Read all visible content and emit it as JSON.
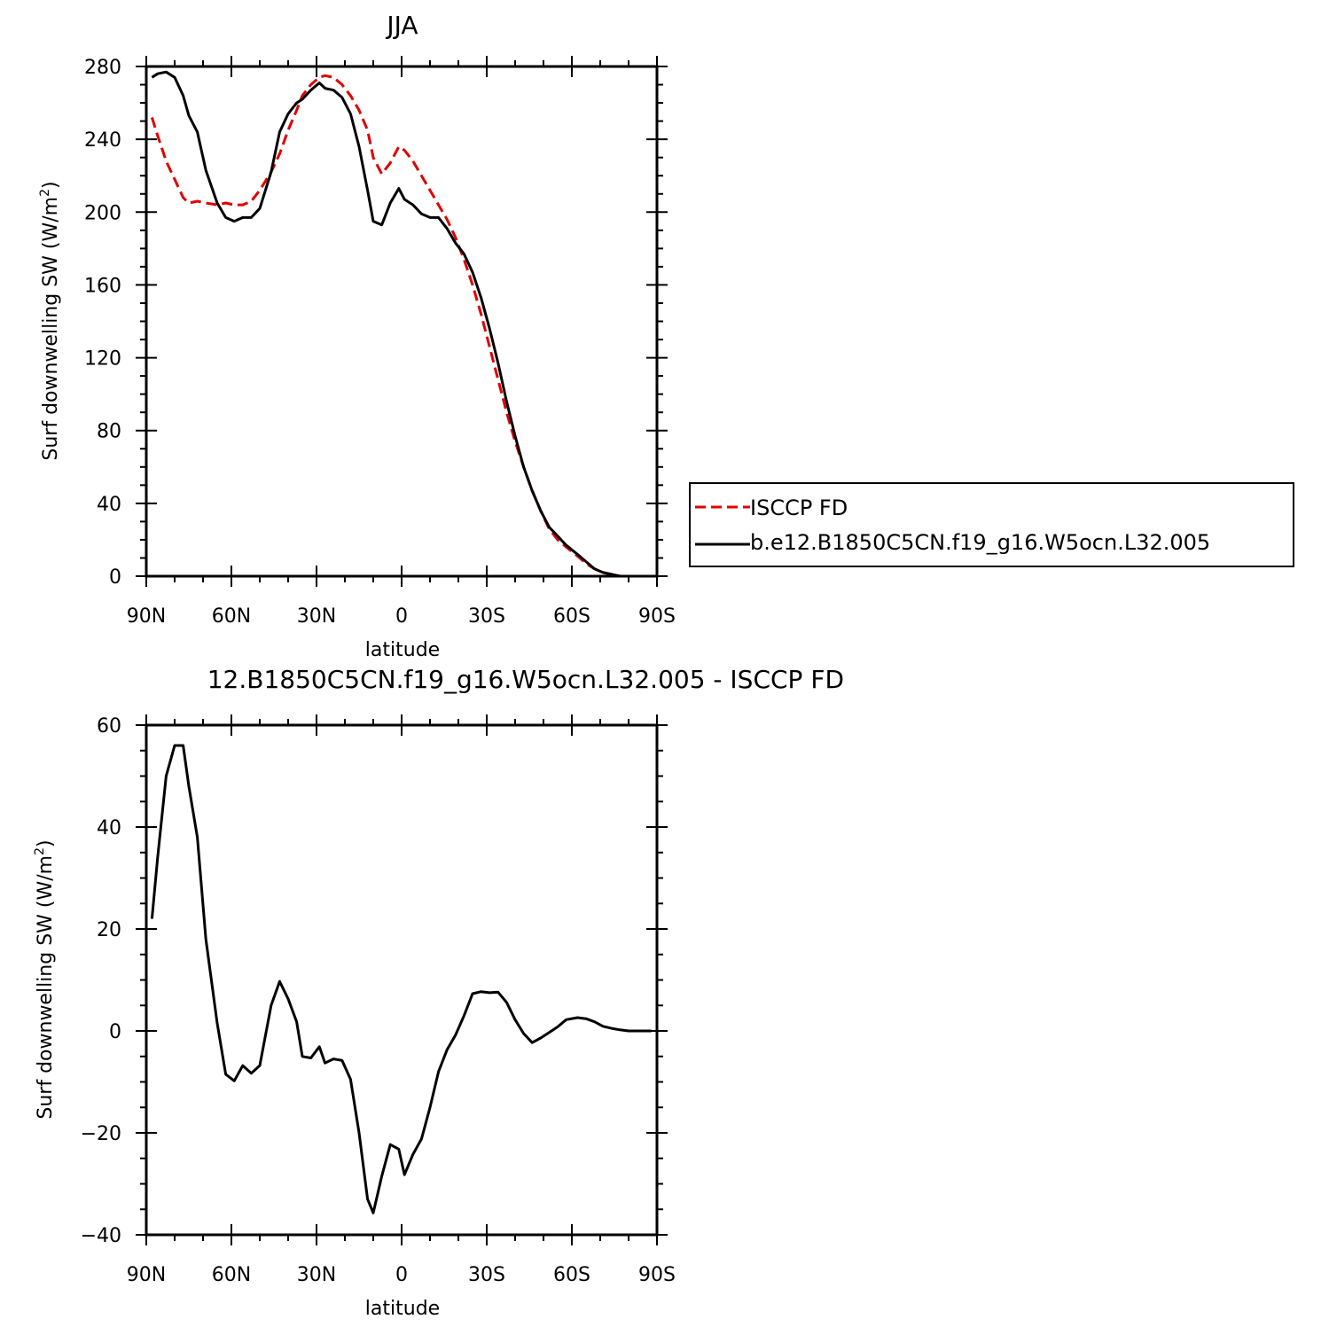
{
  "chart_data": [
    {
      "type": "line",
      "title": "JJA",
      "xlabel": "latitude",
      "ylabel_main": "Surf  downwelling SW  (W/m",
      "ylabel_sup": "2",
      "ylabel_close": ")",
      "xlim": [
        90,
        -90
      ],
      "ylim": [
        0,
        280
      ],
      "x_ticks": [
        90,
        60,
        30,
        0,
        -30,
        -60,
        -90
      ],
      "x_tick_labels": [
        "90N",
        "60N",
        "30N",
        "0",
        "30S",
        "60S",
        "90S"
      ],
      "y_ticks": [
        0,
        40,
        80,
        120,
        160,
        200,
        240,
        280
      ],
      "y_tick_labels": [
        "0",
        "40",
        "80",
        "120",
        "160",
        "200",
        "240",
        "280"
      ],
      "legend_position": "right",
      "series": [
        {
          "name": "ISCCP FD",
          "color": "#e00000",
          "dash": true,
          "x": [
            88,
            86,
            83,
            80,
            77,
            75,
            72,
            69,
            65,
            62,
            59,
            56,
            53,
            50,
            46,
            43,
            40,
            37,
            35,
            32,
            29,
            27,
            24,
            21,
            18,
            15,
            12,
            10,
            7,
            4,
            1,
            -1,
            -4,
            -7,
            -10,
            -13,
            -16,
            -19,
            -22,
            -25,
            -28,
            -31,
            -34,
            -37,
            -40,
            -43,
            -46,
            -49,
            -52,
            -55,
            -58,
            -62,
            -65,
            -68,
            -71,
            -74,
            -77,
            -80,
            -83,
            -86,
            -88
          ],
          "y": [
            252,
            242,
            228,
            218,
            208,
            205,
            206,
            205,
            204,
            205,
            204,
            204,
            206,
            212,
            222,
            232,
            245,
            256,
            264,
            270,
            274,
            275,
            274,
            270,
            264,
            256,
            245,
            230,
            221,
            227,
            236,
            234,
            228,
            220,
            212,
            204,
            196,
            186,
            174,
            160,
            144,
            126,
            108,
            90,
            74,
            60,
            47,
            36,
            26,
            20,
            16,
            11,
            7,
            4,
            2,
            1,
            0,
            0,
            0,
            0,
            0
          ]
        },
        {
          "name": "b.e12.B1850C5CN.f19_g16.W5ocn.L32.005",
          "color": "#000000",
          "dash": false,
          "x": [
            88,
            86,
            83,
            80,
            77,
            75,
            72,
            69,
            65,
            62,
            59,
            56,
            53,
            50,
            46,
            43,
            40,
            37,
            35,
            32,
            29,
            27,
            24,
            21,
            18,
            15,
            12,
            10,
            7,
            4,
            1,
            -1,
            -4,
            -7,
            -10,
            -13,
            -16,
            -19,
            -22,
            -25,
            -28,
            -31,
            -34,
            -37,
            -40,
            -43,
            -46,
            -49,
            -52,
            -55,
            -58,
            -62,
            -65,
            -68,
            -71,
            -74,
            -77,
            -80,
            -83,
            -86,
            -88
          ],
          "y": [
            274,
            276,
            277,
            274,
            264,
            253,
            244,
            223,
            205,
            197,
            195,
            197,
            197,
            202,
            222,
            244,
            254,
            260,
            262,
            267,
            271,
            268,
            267,
            263,
            254,
            236,
            212,
            195,
            193,
            205,
            213,
            207,
            204,
            199,
            197,
            197,
            191,
            183,
            177,
            167,
            153,
            136,
            117,
            96,
            77,
            60,
            47,
            36,
            27,
            22,
            17,
            12,
            8,
            4,
            2,
            1,
            0,
            0,
            0,
            0,
            0
          ]
        }
      ]
    },
    {
      "type": "line",
      "title": "12.B1850C5CN.f19_g16.W5ocn.L32.005 - ISCCP FD",
      "xlabel": "latitude",
      "ylabel_main": "Surf  downwelling SW  (W/m",
      "ylabel_sup": "2",
      "ylabel_close": ")",
      "xlim": [
        90,
        -90
      ],
      "ylim": [
        -40,
        60
      ],
      "x_ticks": [
        90,
        60,
        30,
        0,
        -30,
        -60,
        -90
      ],
      "x_tick_labels": [
        "90N",
        "60N",
        "30N",
        "0",
        "30S",
        "60S",
        "90S"
      ],
      "y_ticks": [
        -40,
        -20,
        0,
        20,
        40,
        60
      ],
      "y_tick_labels": [
        "−40",
        "−20",
        "0",
        "20",
        "40",
        "60"
      ],
      "series": [
        {
          "color": "#000000",
          "dash": false,
          "x": [
            88,
            86,
            83,
            80,
            77,
            75,
            72,
            69,
            65,
            62,
            59,
            56,
            53,
            50,
            46,
            43,
            40,
            37,
            35,
            32,
            29,
            27,
            24,
            21,
            18,
            15,
            12,
            10,
            7,
            4,
            1,
            -1,
            -4,
            -7,
            -10,
            -13,
            -16,
            -19,
            -22,
            -25,
            -28,
            -31,
            -34,
            -37,
            -40,
            -43,
            -46,
            -49,
            -52,
            -55,
            -58,
            -62,
            -65,
            -68,
            -71,
            -74,
            -77,
            -80,
            -83,
            -86,
            -88
          ],
          "y": [
            22,
            34,
            50,
            56,
            56,
            48,
            38,
            18,
            1.5,
            -8.5,
            -9.8,
            -6.8,
            -8.3,
            -6.8,
            5,
            9.7,
            6.3,
            1.8,
            -5,
            -5.3,
            -3.1,
            -6.3,
            -5.5,
            -5.8,
            -9.5,
            -20,
            -33,
            -35.7,
            -28.5,
            -22.3,
            -23.2,
            -28.2,
            -24.2,
            -21.2,
            -15,
            -8,
            -3.7,
            -0.8,
            3,
            7.3,
            7.7,
            7.5,
            7.6,
            5.6,
            2.2,
            -0.5,
            -2.3,
            -1.4,
            -0.3,
            0.8,
            2.2,
            2.6,
            2.4,
            1.8,
            0.9,
            0.5,
            0.2,
            0,
            0,
            0,
            0
          ]
        }
      ]
    }
  ]
}
